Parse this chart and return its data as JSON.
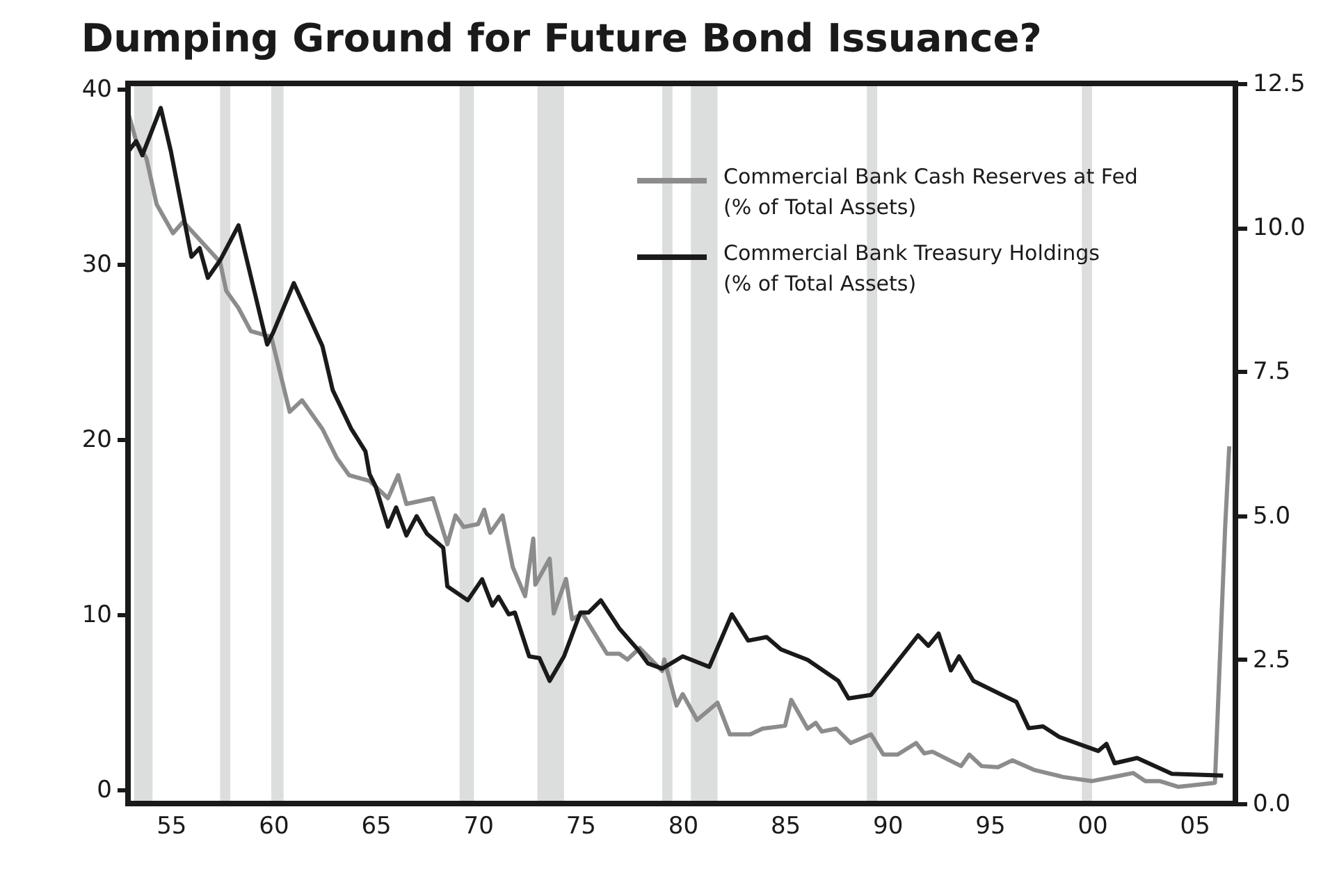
{
  "chart_data": {
    "type": "line",
    "title": "Dumping Ground for Future Bond Issuance?",
    "xlim": [
      1952.9,
      2007.0
    ],
    "xticks": [
      {
        "value": 1955,
        "label": "55"
      },
      {
        "value": 1960,
        "label": "60"
      },
      {
        "value": 1965,
        "label": "65"
      },
      {
        "value": 1970,
        "label": "70"
      },
      {
        "value": 1975,
        "label": "75"
      },
      {
        "value": 1980,
        "label": "80"
      },
      {
        "value": 1985,
        "label": "85"
      },
      {
        "value": 1990,
        "label": "90"
      },
      {
        "value": 1995,
        "label": "95"
      },
      {
        "value": 2000,
        "label": "00"
      },
      {
        "value": 2005,
        "label": "05"
      }
    ],
    "ylim": [
      -0.8,
      40.3
    ],
    "yticks": [
      0,
      10,
      20,
      30,
      40
    ],
    "y2lim": [
      0,
      12.5
    ],
    "y2ticks": [
      {
        "value": 0,
        "label": "0.0"
      },
      2.5,
      {
        "value": 5,
        "label": "5.0"
      },
      7.5,
      {
        "value": 10,
        "label": "10.0"
      },
      12.5
    ],
    "grid": false,
    "legend": "top right",
    "line_style": "solid",
    "bands": [
      {
        "axis": "x",
        "from": 1953.2,
        "to": 1954.1,
        "color": "#dcdddd"
      },
      {
        "axis": "x",
        "from": 1957.4,
        "to": 1957.9,
        "color": "#dcdddd"
      },
      {
        "axis": "x",
        "from": 1959.9,
        "to": 1960.5,
        "color": "#dcdddd"
      },
      {
        "axis": "x",
        "from": 1969.1,
        "to": 1969.8,
        "color": "#dcdddd"
      },
      {
        "axis": "x",
        "from": 1972.9,
        "to": 1974.2,
        "color": "#dcdddd"
      },
      {
        "axis": "x",
        "from": 1979.0,
        "to": 1979.5,
        "color": "#dcdddd"
      },
      {
        "axis": "x",
        "from": 1980.4,
        "to": 1981.7,
        "color": "#dcdddd"
      },
      {
        "axis": "x",
        "from": 1989.0,
        "to": 1989.5,
        "color": "#dcdddd"
      },
      {
        "axis": "x",
        "from": 1999.5,
        "to": 2000.0,
        "color": "#dcdddd"
      }
    ],
    "series": [
      {
        "name": "Commercial Bank Cash Reserves at Fed\n(% of Total Assets)",
        "color": "#8c8c8c",
        "axis": "y2",
        "x": [
          1952.9,
          1953.3,
          1953.8,
          1954.3,
          1955.1,
          1955.6,
          1957.4,
          1957.7,
          1958.3,
          1958.9,
          1959.9,
          1960.8,
          1961.4,
          1962.4,
          1963.1,
          1963.7,
          1964.7,
          1965.6,
          1966.1,
          1966.5,
          1967.8,
          1968.5,
          1968.9,
          1969.3,
          1970.0,
          1970.3,
          1970.6,
          1971.2,
          1971.7,
          1972.3,
          1972.7,
          1972.8,
          1973.5,
          1973.7,
          1974.3,
          1974.6,
          1975.1,
          1976.3,
          1976.9,
          1977.3,
          1977.9,
          1979.0,
          1979.1,
          1979.7,
          1980.0,
          1980.7,
          1981.7,
          1982.3,
          1983.3,
          1983.9,
          1985.0,
          1985.3,
          1986.1,
          1986.5,
          1986.8,
          1987.5,
          1988.2,
          1989.2,
          1989.8,
          1990.5,
          1991.4,
          1991.8,
          1992.2,
          1993.6,
          1994.0,
          1994.6,
          1995.4,
          1996.1,
          1997.2,
          1998.6,
          2000.0,
          2001.3,
          2002.0,
          2002.6,
          2003.3,
          2004.2,
          2006.0,
          2006.5,
          2006.7
        ],
        "values": [
          12.0,
          11.5,
          11.2,
          10.4,
          9.9,
          10.1,
          9.4,
          8.9,
          8.6,
          8.2,
          8.1,
          6.8,
          7.0,
          6.5,
          6.0,
          5.7,
          5.6,
          5.3,
          5.7,
          5.2,
          5.3,
          4.5,
          5.0,
          4.8,
          4.85,
          5.1,
          4.7,
          5.0,
          4.1,
          3.6,
          4.6,
          3.8,
          4.25,
          3.3,
          3.9,
          3.2,
          3.3,
          2.6,
          2.6,
          2.5,
          2.7,
          2.3,
          2.5,
          1.7,
          1.9,
          1.45,
          1.75,
          1.2,
          1.2,
          1.3,
          1.35,
          1.8,
          1.3,
          1.4,
          1.25,
          1.3,
          1.05,
          1.2,
          0.85,
          0.85,
          1.05,
          0.87,
          0.9,
          0.65,
          0.85,
          0.65,
          0.63,
          0.75,
          0.58,
          0.46,
          0.39,
          0.48,
          0.53,
          0.39,
          0.39,
          0.29,
          0.36,
          4.8,
          6.2
        ]
      },
      {
        "name": "Commercial Bank Treasury Holdings\n(% of Total Assets)",
        "color": "#1a1a1a",
        "axis": "y",
        "x": [
          1952.9,
          1953.3,
          1953.6,
          1954.5,
          1955.0,
          1956.0,
          1956.4,
          1956.8,
          1957.4,
          1958.3,
          1959.7,
          1960.0,
          1961.0,
          1962.4,
          1962.9,
          1963.8,
          1964.5,
          1964.7,
          1965.0,
          1965.6,
          1966.0,
          1966.5,
          1967.0,
          1967.5,
          1968.3,
          1968.5,
          1969.5,
          1970.2,
          1970.7,
          1971.0,
          1971.5,
          1971.8,
          1972.5,
          1973.0,
          1973.5,
          1974.2,
          1975.0,
          1975.4,
          1976.0,
          1976.9,
          1977.8,
          1978.3,
          1979.0,
          1980.0,
          1981.3,
          1982.4,
          1983.2,
          1984.1,
          1984.8,
          1986.1,
          1987.6,
          1988.1,
          1989.2,
          1991.5,
          1992.0,
          1992.5,
          1993.1,
          1993.5,
          1994.2,
          1995.6,
          1996.3,
          1996.9,
          1997.6,
          1998.4,
          2000.3,
          2000.7,
          2001.1,
          2002.2,
          2003.9,
          2006.4
        ],
        "values": [
          36.4,
          37.0,
          36.2,
          38.9,
          36.4,
          30.4,
          30.9,
          29.2,
          30.2,
          32.2,
          25.4,
          26.1,
          28.9,
          25.3,
          22.8,
          20.6,
          19.3,
          18.0,
          17.3,
          15.0,
          16.1,
          14.5,
          15.6,
          14.6,
          13.8,
          11.6,
          10.8,
          12.0,
          10.5,
          11.0,
          10.0,
          10.1,
          7.6,
          7.5,
          6.2,
          7.6,
          10.1,
          10.1,
          10.8,
          9.2,
          8.0,
          7.2,
          6.9,
          7.6,
          7.0,
          10.0,
          8.5,
          8.7,
          8.0,
          7.4,
          6.2,
          5.2,
          5.4,
          8.8,
          8.2,
          8.9,
          6.8,
          7.6,
          6.2,
          5.4,
          5.0,
          3.5,
          3.6,
          3.0,
          2.2,
          2.6,
          1.5,
          1.8,
          0.9,
          0.8
        ]
      }
    ]
  }
}
